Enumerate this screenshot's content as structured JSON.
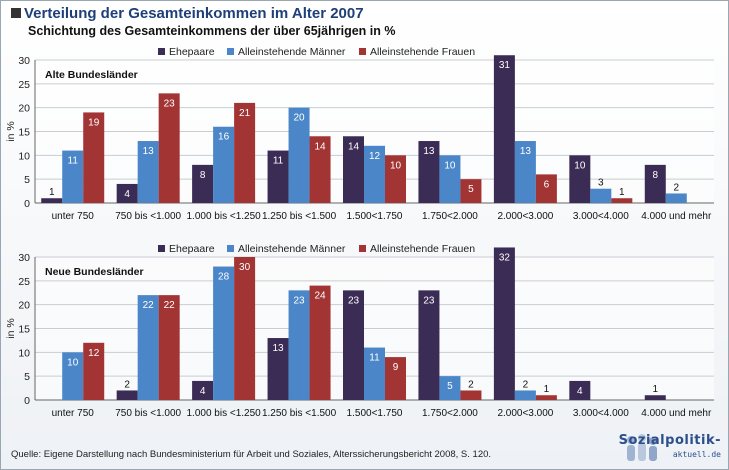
{
  "title": "Verteilung der Gesamteinkommen im Alter 2007",
  "subtitle": "Schichtung des Gesamteinkommens der über 65jährigen in %",
  "source": "Quelle: Eigene Darstellung nach Bundesministerium für Arbeit und Soziales, Alterssicherungsbericht 2008, S. 120.",
  "logo": {
    "main": "Sozialpolitik-",
    "sub": "aktuell.de"
  },
  "colors": {
    "Ehepaare": "#3b2c55",
    "Alleinstehende Männer": "#4a86c8",
    "Alleinstehende Frauen": "#a33434",
    "grid": "#c9cdd2",
    "axis": "#666666"
  },
  "chart_data": [
    {
      "type": "bar",
      "panel_label": "Alte Bundesländer",
      "ylabel": "in %",
      "ylim": [
        0,
        30
      ],
      "yticks": [
        0,
        5,
        10,
        15,
        20,
        25,
        30
      ],
      "grid": true,
      "legend_position": "top",
      "categories": [
        "unter 750",
        "750 bis <1.000",
        "1.000 bis <1.250",
        "1.250 bis <1.500",
        "1.500<1.750",
        "1.750<2.000",
        "2.000<3.000",
        "3.000<4.000",
        "4.000 und mehr"
      ],
      "series": [
        {
          "name": "Ehepaare",
          "values": [
            1,
            4,
            8,
            11,
            14,
            13,
            31,
            10,
            8
          ]
        },
        {
          "name": "Alleinstehende Männer",
          "values": [
            11,
            13,
            16,
            20,
            12,
            10,
            13,
            3,
            2
          ]
        },
        {
          "name": "Alleinstehende Frauen",
          "values": [
            19,
            23,
            21,
            14,
            10,
            5,
            6,
            1,
            null
          ]
        }
      ]
    },
    {
      "type": "bar",
      "panel_label": "Neue Bundesländer",
      "ylabel": "in %",
      "ylim": [
        0,
        30
      ],
      "yticks": [
        0,
        5,
        10,
        15,
        20,
        25,
        30
      ],
      "grid": true,
      "legend_position": "top",
      "categories": [
        "unter 750",
        "750 bis <1.000",
        "1.000 bis <1.250",
        "1.250 bis <1.500",
        "1.500<1.750",
        "1.750<2.000",
        "2.000<3.000",
        "3.000<4.000",
        "4.000 und mehr"
      ],
      "series": [
        {
          "name": "Ehepaare",
          "values": [
            null,
            2,
            4,
            13,
            23,
            23,
            32,
            4,
            1
          ]
        },
        {
          "name": "Alleinstehende Männer",
          "values": [
            10,
            22,
            28,
            23,
            11,
            5,
            2,
            null,
            null
          ]
        },
        {
          "name": "Alleinstehende Frauen",
          "values": [
            12,
            22,
            30,
            24,
            9,
            2,
            1,
            null,
            null
          ]
        }
      ]
    }
  ]
}
